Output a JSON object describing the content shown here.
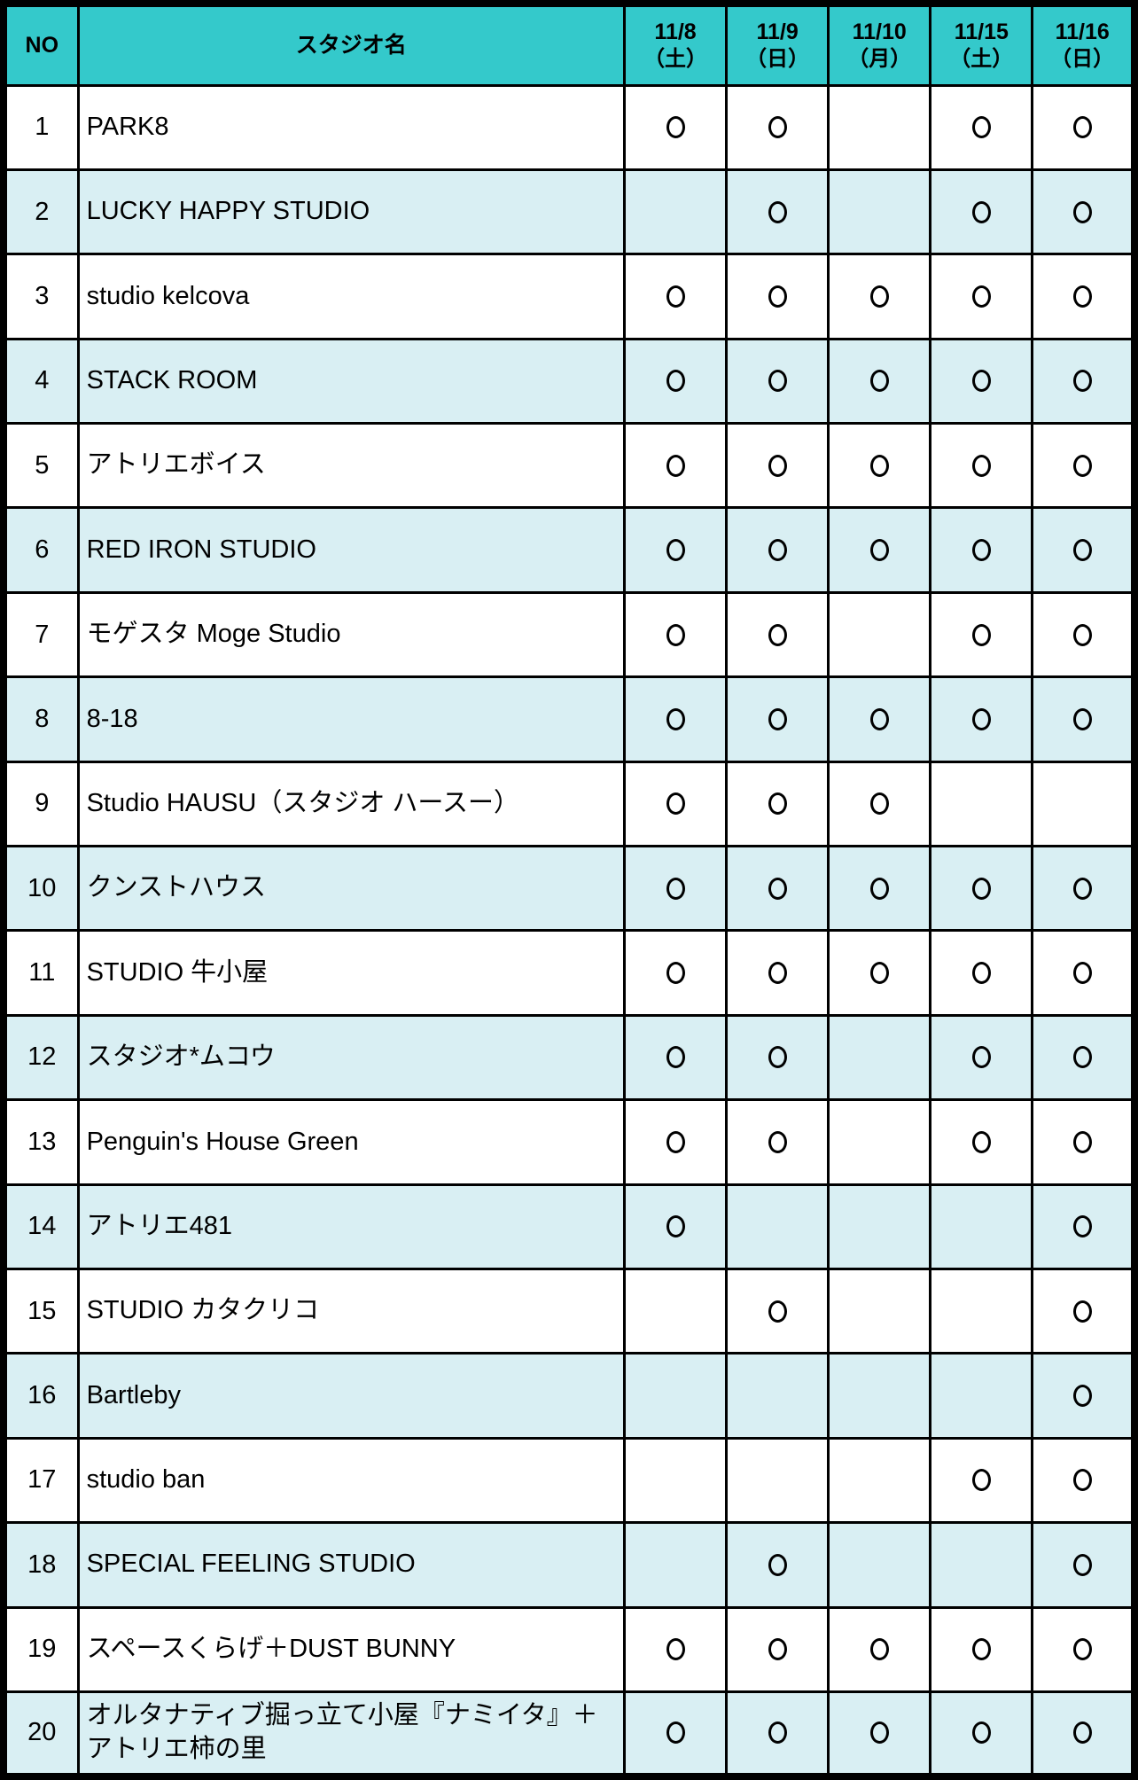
{
  "table": {
    "columns": {
      "no_label": "NO",
      "studio_label": "スタジオ名"
    },
    "date_columns": [
      {
        "date": "11/8",
        "day": "（土）"
      },
      {
        "date": "11/9",
        "day": "（日）"
      },
      {
        "date": "11/10",
        "day": "（月）"
      },
      {
        "date": "11/15",
        "day": "（土）"
      },
      {
        "date": "11/16",
        "day": "（日）"
      }
    ],
    "available_marker": "open-circle",
    "rows": [
      {
        "no": "1",
        "name": "PARK8",
        "availability": [
          true,
          true,
          false,
          true,
          true
        ]
      },
      {
        "no": "2",
        "name": "LUCKY HAPPY STUDIO",
        "availability": [
          false,
          true,
          false,
          true,
          true
        ]
      },
      {
        "no": "3",
        "name": "studio kelcova",
        "availability": [
          true,
          true,
          true,
          true,
          true
        ]
      },
      {
        "no": "4",
        "name": "STACK ROOM",
        "availability": [
          true,
          true,
          true,
          true,
          true
        ]
      },
      {
        "no": "5",
        "name": "アトリエボイス",
        "availability": [
          true,
          true,
          true,
          true,
          true
        ]
      },
      {
        "no": "6",
        "name": "RED IRON STUDIO",
        "availability": [
          true,
          true,
          true,
          true,
          true
        ]
      },
      {
        "no": "7",
        "name": "モゲスタ Moge Studio",
        "availability": [
          true,
          true,
          false,
          true,
          true
        ]
      },
      {
        "no": "8",
        "name": "8-18",
        "availability": [
          true,
          true,
          true,
          true,
          true
        ]
      },
      {
        "no": "9",
        "name": "Studio HAUSU（スタジオ ハースー）",
        "availability": [
          true,
          true,
          true,
          false,
          false
        ]
      },
      {
        "no": "10",
        "name": "クンストハウス",
        "availability": [
          true,
          true,
          true,
          true,
          true
        ]
      },
      {
        "no": "11",
        "name": "STUDIO 牛小屋",
        "availability": [
          true,
          true,
          true,
          true,
          true
        ]
      },
      {
        "no": "12",
        "name": "スタジオ*ムコウ",
        "availability": [
          true,
          true,
          false,
          true,
          true
        ]
      },
      {
        "no": "13",
        "name": "Penguin's House Green",
        "availability": [
          true,
          true,
          false,
          true,
          true
        ]
      },
      {
        "no": "14",
        "name": "アトリエ481",
        "availability": [
          true,
          false,
          false,
          false,
          true
        ]
      },
      {
        "no": "15",
        "name": "STUDIO カタクリコ",
        "availability": [
          false,
          true,
          false,
          false,
          true
        ]
      },
      {
        "no": "16",
        "name": "Bartleby",
        "availability": [
          false,
          false,
          false,
          false,
          true
        ]
      },
      {
        "no": "17",
        "name": "studio ban",
        "availability": [
          false,
          false,
          false,
          true,
          true
        ]
      },
      {
        "no": "18",
        "name": "SPECIAL FEELING STUDIO",
        "availability": [
          false,
          true,
          false,
          false,
          true
        ]
      },
      {
        "no": "19",
        "name": "スペースくらげ＋DUST BUNNY",
        "availability": [
          true,
          true,
          true,
          true,
          true
        ]
      },
      {
        "no": "20",
        "name": "オルタナティブ掘っ立て小屋『ナミイタ』＋アトリエ柿の里",
        "availability": [
          true,
          true,
          true,
          true,
          true
        ]
      }
    ]
  },
  "colors": {
    "header_bg": "#34C9CB",
    "alt_row_bg": "#D9EFF3",
    "row_bg": "#FFFFFF",
    "border": "#000000"
  }
}
